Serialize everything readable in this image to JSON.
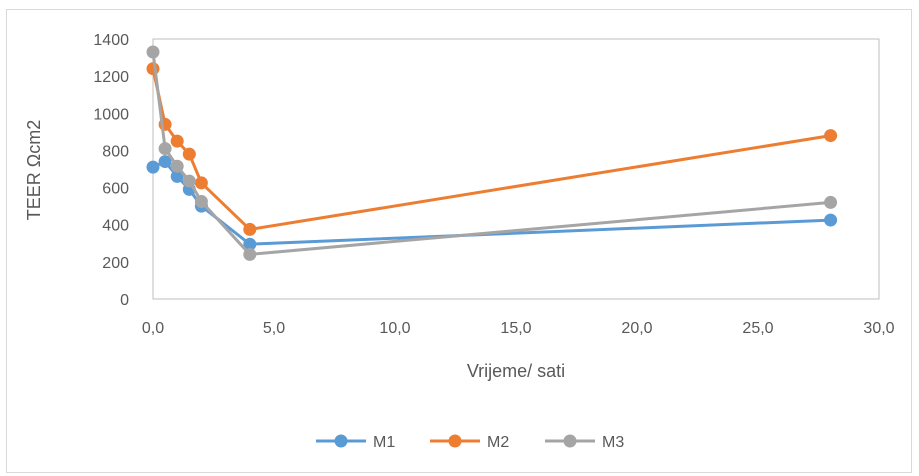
{
  "chart_data": {
    "type": "line",
    "title": "",
    "xlabel": "Vrijeme/ sati",
    "ylabel": "TEER Ωcm2",
    "xlim": [
      0,
      30
    ],
    "ylim": [
      0,
      1400
    ],
    "x_ticks": [
      "0,0",
      "5,0",
      "10,0",
      "15,0",
      "20,0",
      "25,0",
      "30,0"
    ],
    "y_ticks": [
      "0",
      "200",
      "400",
      "600",
      "800",
      "1000",
      "1200",
      "1400"
    ],
    "grid": false,
    "legend_position": "bottom",
    "series": [
      {
        "name": "M1",
        "color": "#5b9bd5",
        "x": [
          0,
          0.5,
          1,
          1.5,
          2,
          4,
          28
        ],
        "y": [
          710,
          740,
          660,
          590,
          500,
          295,
          425
        ]
      },
      {
        "name": "M2",
        "color": "#ed7d31",
        "x": [
          0,
          0.5,
          1,
          1.5,
          2,
          4,
          28
        ],
        "y": [
          1240,
          940,
          850,
          780,
          625,
          375,
          880
        ]
      },
      {
        "name": "M3",
        "color": "#a5a5a5",
        "x": [
          0,
          0.5,
          1,
          1.5,
          2,
          4,
          28
        ],
        "y": [
          1330,
          810,
          715,
          635,
          525,
          240,
          520
        ]
      }
    ]
  }
}
